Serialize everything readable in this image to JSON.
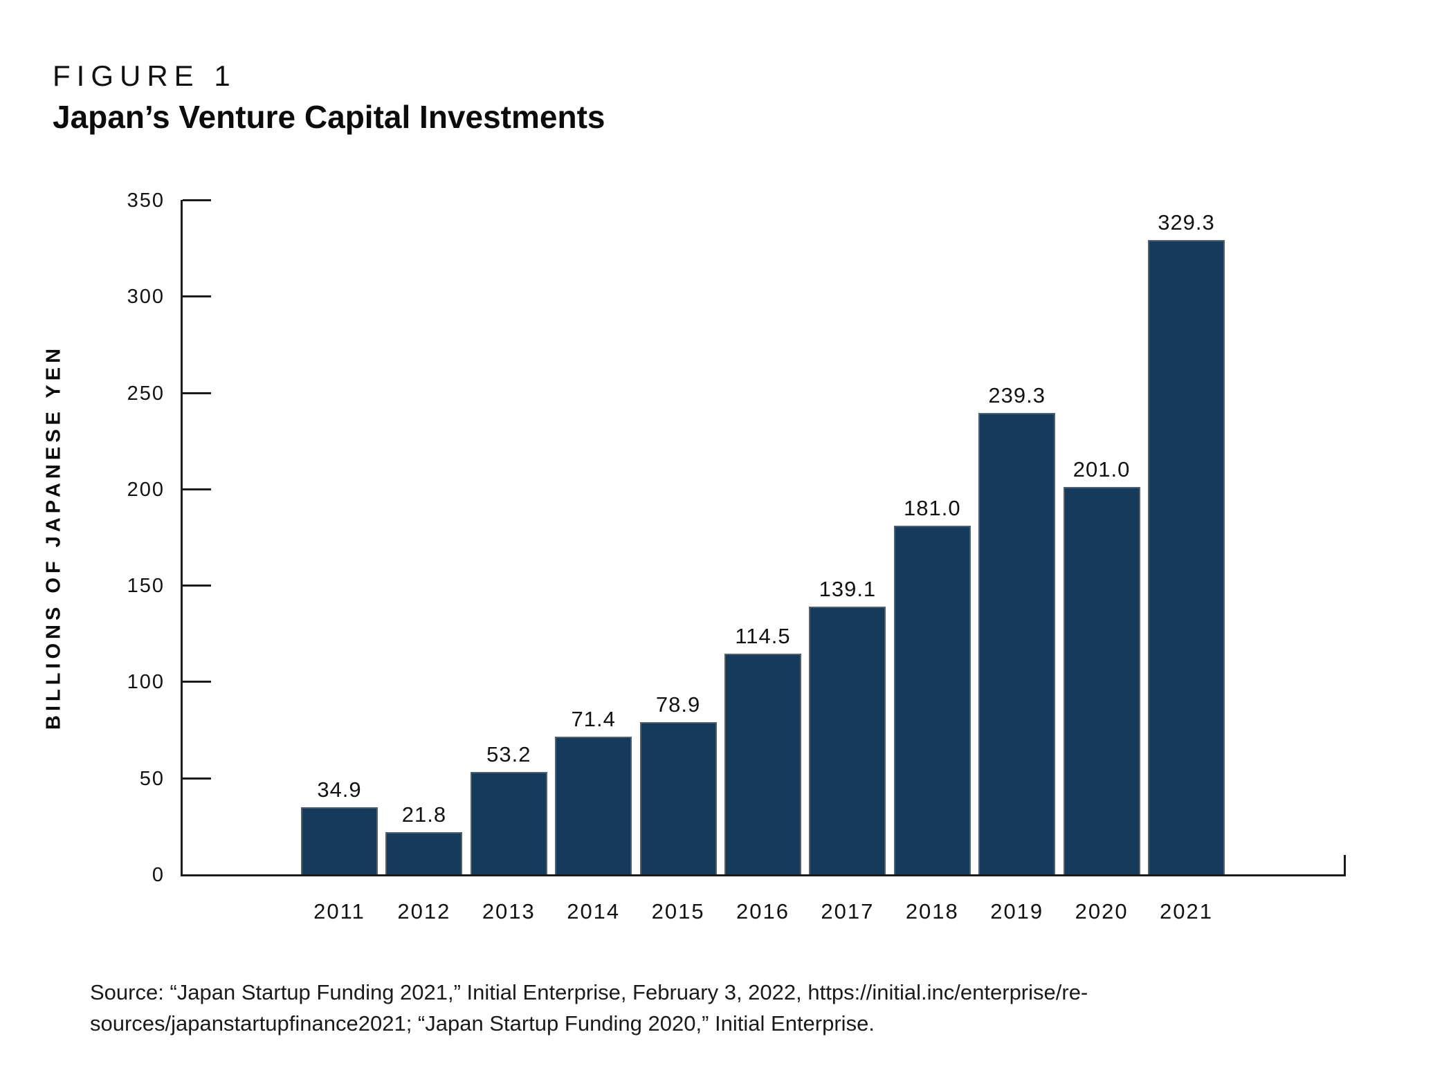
{
  "figure": {
    "label": "FIGURE 1",
    "title": "Japan’s Venture Capital Investments"
  },
  "chart_data": {
    "type": "bar",
    "title": "Japan’s Venture Capital Investments",
    "categories": [
      "2011",
      "2012",
      "2013",
      "2014",
      "2015",
      "2016",
      "2017",
      "2018",
      "2019",
      "2020",
      "2021"
    ],
    "values": [
      34.9,
      21.8,
      53.2,
      71.4,
      78.9,
      114.5,
      139.1,
      181.0,
      239.3,
      201.0,
      329.3
    ],
    "value_labels": [
      "34.9",
      "21.8",
      "53.2",
      "71.4",
      "78.9",
      "114.5",
      "139.1",
      "181.0",
      "239.3",
      "201.0",
      "329.3"
    ],
    "xlabel": "",
    "ylabel": "BILLIONS OF JAPANESE YEN",
    "ylim": [
      0,
      350
    ],
    "yticks": [
      0,
      50,
      100,
      150,
      200,
      250,
      300,
      350
    ],
    "grid": false,
    "legend": "none",
    "bar_color": "#163A5C",
    "bar_edge_color": "#50606F",
    "axis_color": "#1A1A1A",
    "text_color": "#111111"
  },
  "source": {
    "line1": "Source: “Japan Startup Funding 2021,” Initial Enterprise, February 3, 2022, https://initial.inc/enterprise/re-",
    "line2": "sources/japanstartupfinance2021; “Japan Startup Funding 2020,” Initial Enterprise."
  }
}
